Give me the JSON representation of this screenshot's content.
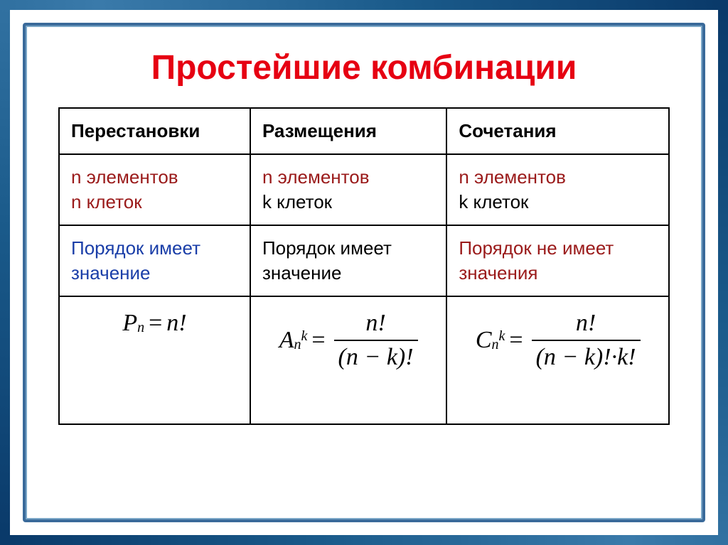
{
  "slide": {
    "title": "Простейшие комбинации",
    "title_color": "#e60012",
    "border_gradient": [
      "#0a3a6a",
      "#1a5a8a",
      "#3a7aaa"
    ],
    "background_color": "#ffffff",
    "inner_border_color": "#3a6a9a"
  },
  "table": {
    "type": "table",
    "border_color": "#000000",
    "cell_fontsize": 26,
    "columns": [
      "Перестановки",
      "Размещения",
      "Сочетания"
    ],
    "rows": {
      "elements": {
        "color_line1": "#9a1a1a",
        "color_line2_perm": "#9a1a1a",
        "color_line2_other": "#000000",
        "perm_line1": "n элементов",
        "perm_line2": "n клеток",
        "arr_line1": "n элементов",
        "arr_line2": "k клеток",
        "comb_line1": "n элементов",
        "comb_line2": "k клеток"
      },
      "order": {
        "perm": "Порядок имеет значение",
        "perm_color": "#1a3ea8",
        "arr": "Порядок имеет значение",
        "arr_color": "#000000",
        "comb": "Порядок не имеет значения",
        "comb_color": "#9a1a1a"
      }
    },
    "formulas": {
      "font_family": "Times New Roman",
      "fontsize": 34,
      "permutation": {
        "symbol": "P",
        "sub": "n",
        "rhs": "n!"
      },
      "arrangement": {
        "symbol": "A",
        "sub": "n",
        "sup": "k",
        "numerator": "n!",
        "denominator": "(n − k)!"
      },
      "combination": {
        "symbol": "C",
        "sub": "n",
        "sup": "k",
        "numerator": "n!",
        "denominator": "(n − k)!·k!"
      }
    }
  }
}
